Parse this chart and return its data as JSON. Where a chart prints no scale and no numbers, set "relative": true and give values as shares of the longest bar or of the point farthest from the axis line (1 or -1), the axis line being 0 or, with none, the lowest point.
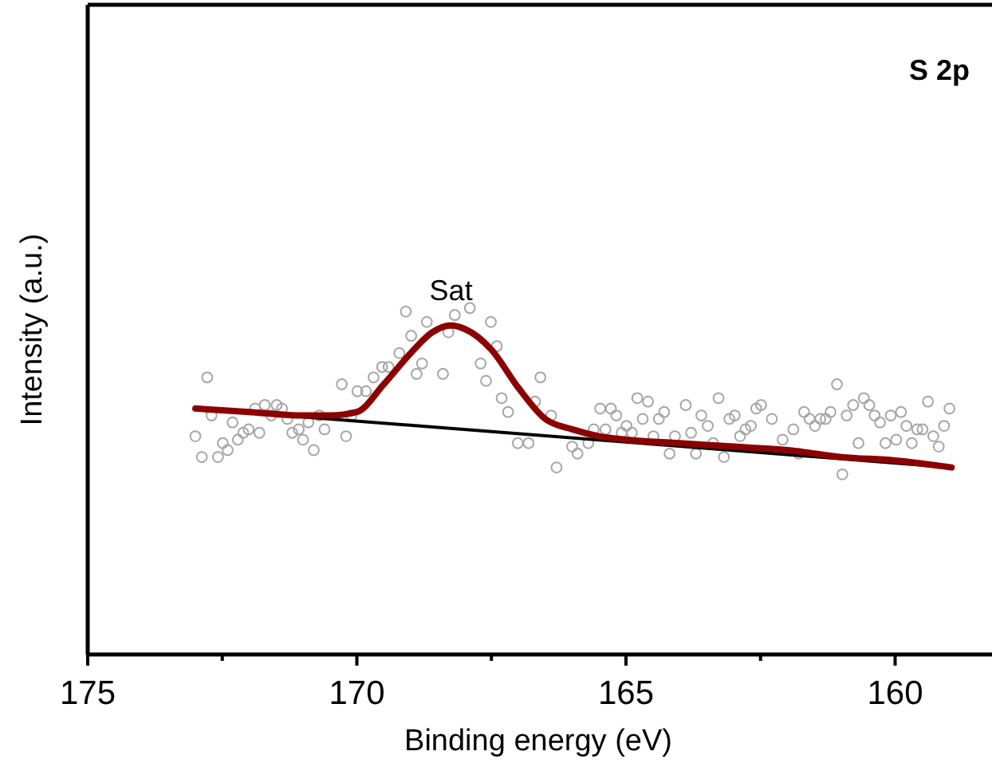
{
  "chart_data": {
    "type": "scatter",
    "relative": true,
    "xlabel": "Binding energy (eV)",
    "ylabel": "Intensity (a.u.)",
    "xlim": [
      175,
      158.2
    ],
    "xticks": [
      175,
      {
        "value": 172.5,
        "label": null
      },
      170,
      {
        "value": 167.5,
        "label": null
      },
      165,
      {
        "value": 162.5,
        "label": null
      },
      160
    ],
    "tick_labels": "x",
    "annotations": [
      "S 2p",
      {
        "text": "Sat",
        "x": 168.25,
        "y": 0.95
      }
    ],
    "series": [
      {
        "marker": "circle",
        "color": "#a6a6a6",
        "x": [
          173.0,
          172.88,
          172.78,
          172.7,
          172.58,
          172.49,
          172.4,
          172.31,
          172.21,
          172.11,
          172.01,
          171.89,
          171.81,
          171.71,
          171.59,
          171.49,
          171.39,
          171.29,
          171.2,
          171.08,
          171.0,
          170.9,
          170.8,
          170.7,
          170.6,
          170.28,
          170.2,
          170.1,
          169.99,
          169.83,
          169.69,
          169.53,
          169.41,
          169.21,
          169.09,
          168.99,
          168.89,
          168.79,
          168.7,
          168.4,
          168.3,
          168.18,
          167.9,
          167.7,
          167.6,
          167.51,
          167.4,
          167.31,
          167.19,
          167.01,
          166.81,
          166.69,
          166.59,
          166.39,
          166.29,
          166.0,
          165.9,
          165.7,
          165.6,
          165.48,
          165.38,
          165.28,
          165.18,
          165.08,
          164.99,
          164.89,
          164.79,
          164.69,
          164.59,
          164.49,
          164.39,
          164.29,
          164.19,
          164.09,
          163.89,
          163.79,
          163.7,
          163.6,
          163.48,
          163.38,
          163.28,
          163.18,
          163.08,
          162.98,
          162.88,
          162.78,
          162.68,
          162.58,
          162.49,
          162.29,
          162.09,
          161.89,
          161.79,
          161.69,
          161.59,
          161.49,
          161.39,
          161.29,
          161.2,
          161.08,
          160.98,
          160.9,
          160.78,
          160.68,
          160.58,
          160.48,
          160.38,
          160.28,
          160.18,
          160.08,
          159.98,
          159.89,
          159.79,
          159.69,
          159.59,
          159.49,
          159.39,
          159.29,
          159.19,
          159.09,
          158.99
        ],
        "values": [
          0.63,
          0.57,
          0.8,
          0.69,
          0.57,
          0.61,
          0.59,
          0.67,
          0.62,
          0.64,
          0.65,
          0.71,
          0.64,
          0.72,
          0.69,
          0.72,
          0.71,
          0.68,
          0.64,
          0.65,
          0.62,
          0.67,
          0.59,
          0.69,
          0.65,
          0.78,
          0.63,
          0.69,
          0.76,
          0.76,
          0.8,
          0.83,
          0.83,
          0.87,
          0.99,
          0.92,
          0.81,
          0.84,
          0.96,
          0.81,
          0.93,
          0.98,
          1.0,
          0.84,
          0.79,
          0.96,
          0.89,
          0.74,
          0.7,
          0.61,
          0.61,
          0.73,
          0.8,
          0.69,
          0.54,
          0.6,
          0.58,
          0.61,
          0.65,
          0.71,
          0.65,
          0.71,
          0.69,
          0.64,
          0.66,
          0.64,
          0.74,
          0.68,
          0.73,
          0.63,
          0.68,
          0.7,
          0.58,
          0.63,
          0.72,
          0.64,
          0.58,
          0.69,
          0.66,
          0.61,
          0.74,
          0.57,
          0.68,
          0.69,
          0.63,
          0.65,
          0.66,
          0.71,
          0.72,
          0.68,
          0.62,
          0.65,
          0.58,
          0.7,
          0.68,
          0.66,
          0.68,
          0.68,
          0.7,
          0.78,
          0.52,
          0.69,
          0.72,
          0.61,
          0.74,
          0.72,
          0.69,
          0.67,
          0.61,
          0.69,
          0.62,
          0.7,
          0.66,
          0.61,
          0.65,
          0.65,
          0.73,
          0.63,
          0.6,
          0.66,
          0.71
        ]
      },
      {
        "type": "line",
        "color": "#000000",
        "x": [
          173.0,
          158.95
        ],
        "values": [
          0.71,
          0.54
        ]
      },
      {
        "type": "line",
        "color": "#8b0000",
        "x": [
          173,
          172,
          171,
          170.5,
          170,
          169.5,
          169,
          168.6,
          168.25,
          168,
          167.5,
          167,
          166.5,
          166,
          165.5,
          165,
          164,
          163,
          162,
          161,
          160,
          158.95
        ],
        "values": [
          0.71,
          0.7,
          0.69,
          0.69,
          0.7,
          0.78,
          0.87,
          0.93,
          0.95,
          0.94,
          0.88,
          0.77,
          0.68,
          0.65,
          0.63,
          0.62,
          0.61,
          0.6,
          0.59,
          0.57,
          0.56,
          0.54
        ]
      }
    ]
  }
}
